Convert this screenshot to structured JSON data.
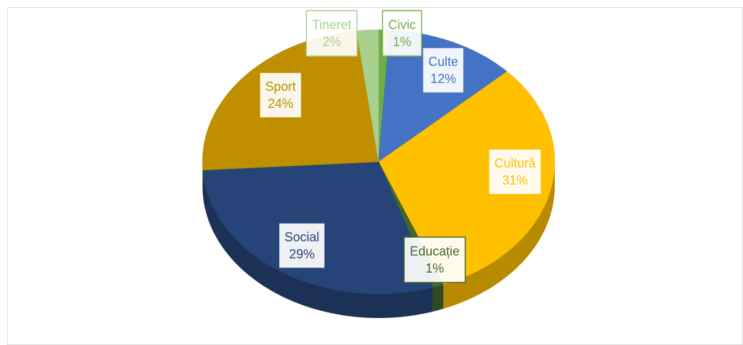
{
  "chart_data": {
    "type": "pie",
    "categories": [
      "Civic",
      "Culte",
      "Cultură",
      "Educație",
      "Social",
      "Sport",
      "Tineret"
    ],
    "values": [
      1,
      12,
      31,
      1,
      29,
      24,
      2
    ],
    "value_labels": [
      "1%",
      "12%",
      "31%",
      "1%",
      "29%",
      "24%",
      "2%"
    ],
    "colors": [
      "#70ad47",
      "#4472c4",
      "#ffc000",
      "#43682b",
      "#264478",
      "#bf8f00",
      "#a9d18e"
    ]
  }
}
